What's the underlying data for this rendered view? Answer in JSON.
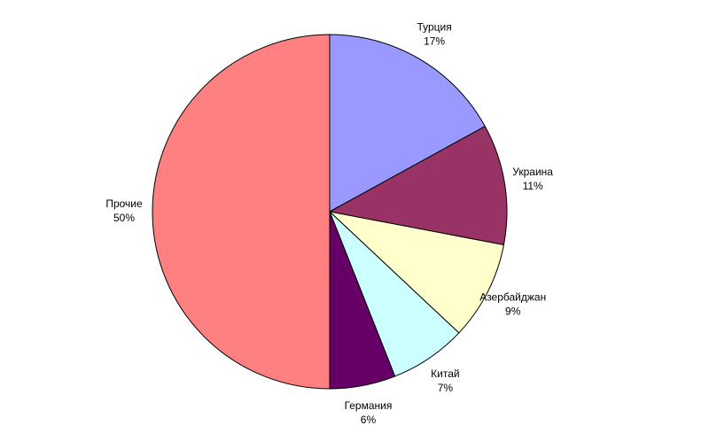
{
  "chart_data": {
    "type": "pie",
    "categories": [
      "Турция",
      "Украина",
      "Азербайджан",
      "Китай",
      "Германия",
      "Прочие"
    ],
    "values": [
      17,
      11,
      9,
      7,
      6,
      50
    ],
    "value_labels": [
      "17%",
      "11%",
      "9%",
      "7%",
      "6%",
      "50%"
    ],
    "colors": [
      "#9999ff",
      "#993366",
      "#ffffcc",
      "#ccffff",
      "#660066",
      "#ff8080"
    ]
  }
}
